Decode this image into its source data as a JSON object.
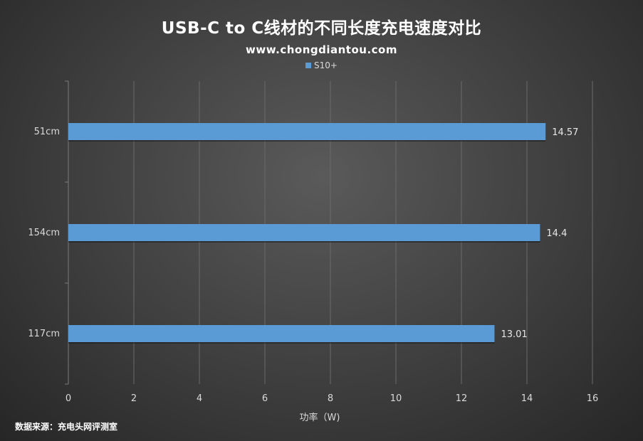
{
  "chart_data": {
    "type": "bar",
    "orientation": "horizontal",
    "title": "USB-C to C线材的不同长度充电速度对比",
    "subtitle": "www.chongdiantou.com",
    "categories": [
      "51cm",
      "154cm",
      "117cm"
    ],
    "series": [
      {
        "name": "S10+",
        "values": [
          14.57,
          14.4,
          13.01
        ],
        "color": "#5b9bd5"
      }
    ],
    "data_labels": [
      "14.57",
      "14.4",
      "13.01"
    ],
    "xlabel": "功率（W)",
    "ylabel": "",
    "xlim": [
      0,
      16
    ],
    "x_ticks": [
      0,
      2,
      4,
      6,
      8,
      10,
      12,
      14,
      16
    ],
    "grid": true,
    "legend_position": "top-center"
  },
  "source_note": "数据来源：充电头网评测室"
}
